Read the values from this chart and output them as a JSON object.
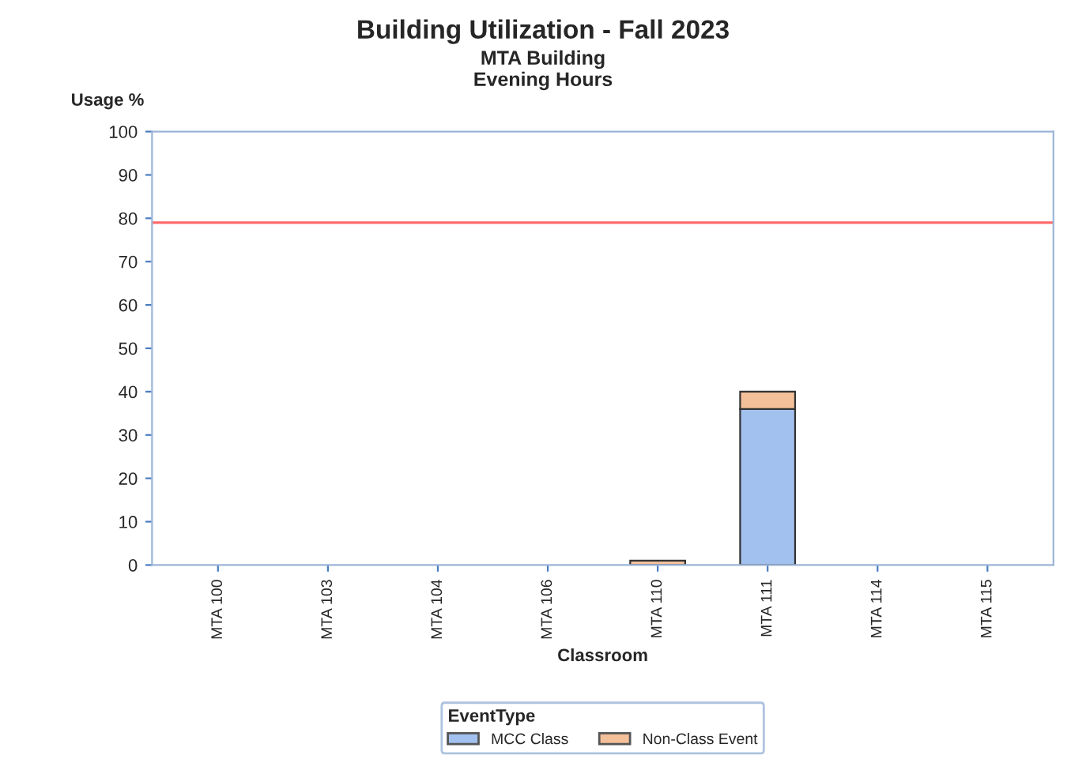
{
  "chart_data": {
    "type": "bar",
    "title": "Building Utilization - Fall 2023",
    "subtitle": "MTA Building\nEvening Hours",
    "xlabel": "Classroom",
    "ylabel": "Usage %",
    "legend_title": "EventType",
    "categories": [
      "MTA 100",
      "MTA 103",
      "MTA 104",
      "MTA 106",
      "MTA 110",
      "MTA 111",
      "MTA 114",
      "MTA 115"
    ],
    "stacked": true,
    "series": [
      {
        "name": "MCC Class",
        "color": "#a3c1ee",
        "values": [
          0,
          0,
          0,
          0,
          0,
          36,
          0,
          0
        ]
      },
      {
        "name": "Non-Class Event",
        "color": "#f4c09a",
        "values": [
          0,
          0,
          0,
          0,
          1,
          4,
          0,
          0
        ]
      }
    ],
    "ylim": [
      0,
      100
    ],
    "yticks": [
      0,
      10,
      20,
      30,
      40,
      50,
      60,
      70,
      80,
      90,
      100
    ],
    "ref_lines": [
      {
        "axis": "y",
        "value": 79,
        "color": "#ff6b6b"
      }
    ],
    "grid": false,
    "legend": "bottom"
  }
}
